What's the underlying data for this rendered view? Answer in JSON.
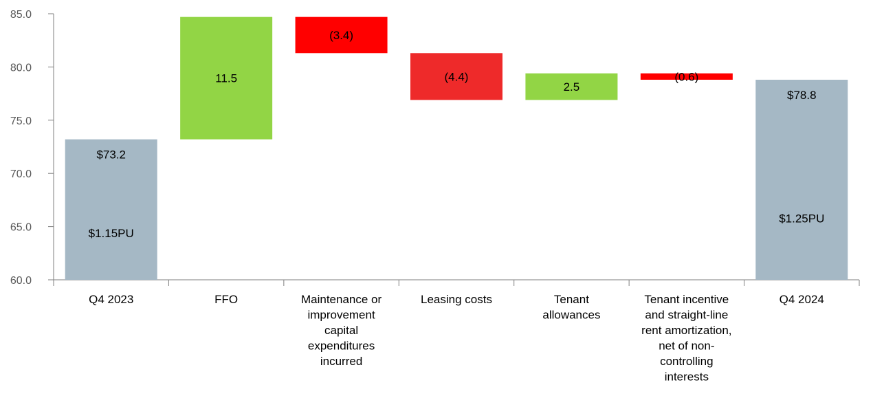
{
  "chart_data": {
    "type": "waterfall",
    "categories": [
      [
        "Q4 2023"
      ],
      [
        "FFO"
      ],
      [
        "Maintenance or",
        "improvement",
        "capital",
        "expenditures",
        "incurred"
      ],
      [
        "Leasing costs"
      ],
      [
        "Tenant",
        "allowances"
      ],
      [
        "Tenant incentive",
        "and straight-line",
        "rent amortization,",
        "net of non-",
        "controlling",
        "interests"
      ],
      [
        "Q4 2024"
      ]
    ],
    "bars": [
      {
        "kind": "total",
        "start": 60.0,
        "end": 73.2,
        "label": "$73.2",
        "sublabel": "$1.15PU",
        "color": "#a5b8c5"
      },
      {
        "kind": "increase",
        "start": 73.2,
        "end": 84.7,
        "label": "11.5",
        "color": "#92d545"
      },
      {
        "kind": "decrease",
        "start": 84.7,
        "end": 81.3,
        "label": "(3.4)",
        "color": "#ff0000"
      },
      {
        "kind": "decrease",
        "start": 81.3,
        "end": 76.9,
        "label": "(4.4)",
        "color": "#ee2a2a"
      },
      {
        "kind": "increase",
        "start": 76.9,
        "end": 79.4,
        "label": "2.5",
        "color": "#92d545"
      },
      {
        "kind": "decrease",
        "start": 79.4,
        "end": 78.8,
        "label": "(0.6)",
        "color": "#ff0000"
      },
      {
        "kind": "total",
        "start": 60.0,
        "end": 78.8,
        "label": "$78.8",
        "sublabel": "$1.25PU",
        "color": "#a5b8c5"
      }
    ],
    "y_ticks": [
      "60.0",
      "65.0",
      "70.0",
      "75.0",
      "80.0",
      "85.0"
    ],
    "ylim": [
      60,
      85
    ],
    "grid": false,
    "legend": "none"
  }
}
